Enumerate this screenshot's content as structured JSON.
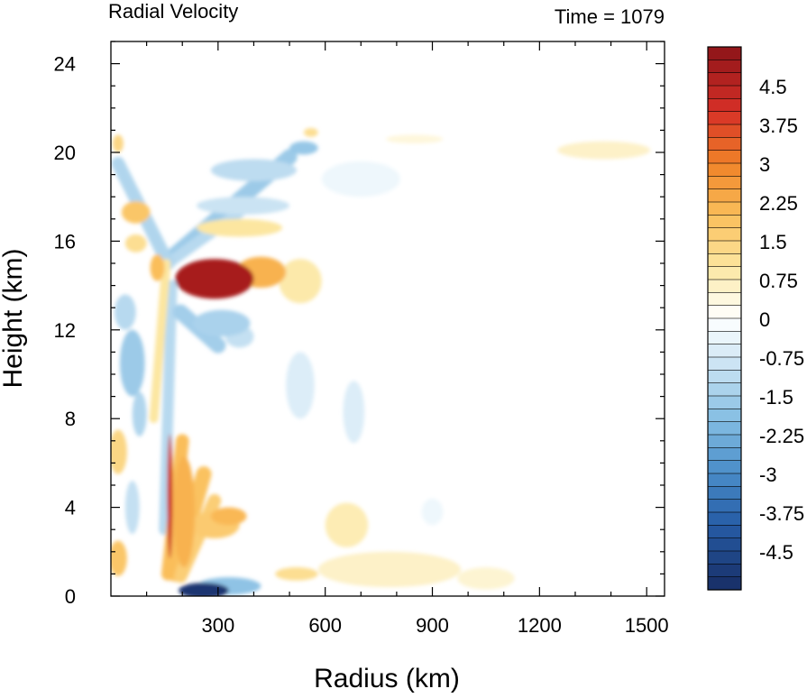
{
  "chart_data": {
    "type": "heatmap",
    "title": "Radial Velocity",
    "right_title": "Time = 1079",
    "xlabel": "Radius (km)",
    "ylabel": "Height (km)",
    "xlim": [
      0,
      1550
    ],
    "ylim": [
      0,
      25
    ],
    "x_ticks": [
      300,
      600,
      900,
      1200,
      1500
    ],
    "y_ticks": [
      0,
      4,
      8,
      12,
      16,
      20,
      24
    ],
    "colorbar": {
      "min": -5.25,
      "max": 5.25,
      "step": 0.25,
      "labels": [
        4.5,
        3.75,
        3,
        2.25,
        1.5,
        0.75,
        0,
        -0.75,
        -1.5,
        -2.25,
        -3,
        -3.75,
        -4.5
      ],
      "label_text": [
        "4.5",
        "3.75",
        "3",
        "2.25",
        "1.5",
        "0.75",
        "0",
        "-0.75",
        "-1.5",
        "-2.25",
        "-3",
        "-3.75",
        "-4.5"
      ]
    },
    "features": [
      {
        "x": 290,
        "y": 14.3,
        "rx": 110,
        "ry": 0.9,
        "v": 4.8
      },
      {
        "x": 420,
        "y": 14.6,
        "rx": 70,
        "ry": 0.7,
        "v": 2.2
      },
      {
        "x": 530,
        "y": 14.2,
        "rx": 60,
        "ry": 1.0,
        "v": 0.9
      },
      {
        "x": 260,
        "y": 0.25,
        "rx": 70,
        "ry": 0.35,
        "v": -5.0
      },
      {
        "x": 330,
        "y": 0.45,
        "rx": 90,
        "ry": 0.4,
        "v": -1.8
      },
      {
        "x": 165,
        "y": 4.5,
        "rx": 5,
        "ry": 2.8,
        "v": 4.2
      },
      {
        "x": 205,
        "y": 3.8,
        "rx": 30,
        "ry": 2.5,
        "v": 2.2
      },
      {
        "x": 290,
        "y": 3.2,
        "rx": 70,
        "ry": 0.6,
        "v": 1.7
      },
      {
        "x": 330,
        "y": 3.6,
        "rx": 50,
        "ry": 0.4,
        "v": 2.1
      },
      {
        "x": 20,
        "y": 1.7,
        "rx": 25,
        "ry": 0.8,
        "v": 1.8
      },
      {
        "x": 20,
        "y": 6.5,
        "rx": 25,
        "ry": 1.0,
        "v": 1.4
      },
      {
        "x": 70,
        "y": 17.3,
        "rx": 40,
        "ry": 0.5,
        "v": 1.8
      },
      {
        "x": 70,
        "y": 15.9,
        "rx": 30,
        "ry": 0.4,
        "v": 1.2
      },
      {
        "x": 130,
        "y": 14.8,
        "rx": 20,
        "ry": 0.6,
        "v": 2.0
      },
      {
        "x": 20,
        "y": 20.4,
        "rx": 15,
        "ry": 0.4,
        "v": 1.4
      },
      {
        "x": 60,
        "y": 10.5,
        "rx": 35,
        "ry": 1.5,
        "v": -1.6
      },
      {
        "x": 40,
        "y": 12.8,
        "rx": 30,
        "ry": 0.8,
        "v": -1.2
      },
      {
        "x": 60,
        "y": 4.0,
        "rx": 20,
        "ry": 1.2,
        "v": -1.0
      },
      {
        "x": 80,
        "y": 8.2,
        "rx": 20,
        "ry": 1.0,
        "v": -1.3
      },
      {
        "x": 400,
        "y": 19.2,
        "rx": 120,
        "ry": 0.5,
        "v": -1.1
      },
      {
        "x": 540,
        "y": 20.2,
        "rx": 40,
        "ry": 0.3,
        "v": -1.7
      },
      {
        "x": 370,
        "y": 17.6,
        "rx": 130,
        "ry": 0.4,
        "v": -0.9
      },
      {
        "x": 360,
        "y": 16.6,
        "rx": 120,
        "ry": 0.4,
        "v": 1.0
      },
      {
        "x": 310,
        "y": 12.3,
        "rx": 80,
        "ry": 0.6,
        "v": -1.4
      },
      {
        "x": 360,
        "y": 11.7,
        "rx": 40,
        "ry": 0.5,
        "v": -1.0
      },
      {
        "x": 530,
        "y": 9.5,
        "rx": 40,
        "ry": 1.5,
        "v": -0.6
      },
      {
        "x": 680,
        "y": 8.3,
        "rx": 30,
        "ry": 1.4,
        "v": -0.6
      },
      {
        "x": 660,
        "y": 3.2,
        "rx": 60,
        "ry": 1.0,
        "v": 0.8
      },
      {
        "x": 780,
        "y": 1.2,
        "rx": 200,
        "ry": 0.8,
        "v": 0.6
      },
      {
        "x": 1050,
        "y": 0.8,
        "rx": 80,
        "ry": 0.5,
        "v": 0.5
      },
      {
        "x": 520,
        "y": 1.0,
        "rx": 60,
        "ry": 0.3,
        "v": 1.2
      },
      {
        "x": 1380,
        "y": 20.1,
        "rx": 130,
        "ry": 0.4,
        "v": 0.6
      },
      {
        "x": 850,
        "y": 20.6,
        "rx": 80,
        "ry": 0.2,
        "v": 0.4
      },
      {
        "x": 700,
        "y": 18.8,
        "rx": 110,
        "ry": 0.8,
        "v": -0.3
      },
      {
        "x": 900,
        "y": 3.8,
        "rx": 30,
        "ry": 0.6,
        "v": -0.3
      },
      {
        "x": 560,
        "y": 20.9,
        "rx": 20,
        "ry": 0.2,
        "v": 1.2
      }
    ],
    "ridges": [
      {
        "x1": 165,
        "y1": 15.2,
        "x2": 500,
        "y2": 19.8,
        "w": 0.35,
        "v": -1.6
      },
      {
        "x1": 160,
        "y1": 15.0,
        "x2": 360,
        "y2": 17.3,
        "w": 0.25,
        "v": -1.2
      },
      {
        "x1": 20,
        "y1": 19.5,
        "x2": 160,
        "y2": 15.0,
        "w": 0.3,
        "v": -1.3
      },
      {
        "x1": 170,
        "y1": 14.0,
        "x2": 150,
        "y2": 3.0,
        "w": 0.25,
        "v": -1.2
      },
      {
        "x1": 155,
        "y1": 15.0,
        "x2": 120,
        "y2": 8.0,
        "w": 0.2,
        "v": 1.0
      },
      {
        "x1": 180,
        "y1": 1.0,
        "x2": 260,
        "y2": 5.5,
        "w": 0.35,
        "v": 1.9
      },
      {
        "x1": 195,
        "y1": 0.9,
        "x2": 290,
        "y2": 4.3,
        "w": 0.3,
        "v": 1.6
      },
      {
        "x1": 160,
        "y1": 1.0,
        "x2": 200,
        "y2": 7.0,
        "w": 0.3,
        "v": 2.0
      },
      {
        "x1": 195,
        "y1": 12.8,
        "x2": 300,
        "y2": 11.3,
        "w": 0.35,
        "v": -1.5
      }
    ]
  }
}
